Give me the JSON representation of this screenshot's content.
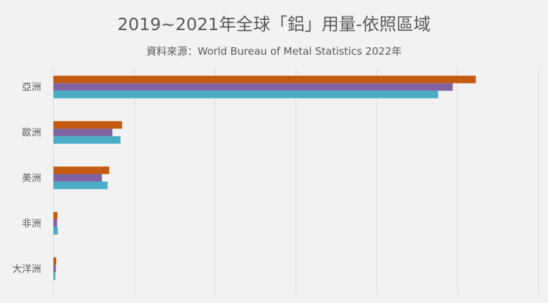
{
  "chart_data": {
    "type": "bar",
    "orientation": "horizontal",
    "title": "2019~2021年全球「鋁」用量-依照區域",
    "subtitle": "資料來源：World Bureau of Metal Statistics 2022年",
    "categories": [
      "亞洲",
      "歐洲",
      "美洲",
      "非洲",
      "大洋洲"
    ],
    "series": [
      {
        "color": "#c55a11",
        "values": [
          104.5,
          17.0,
          13.8,
          1.0,
          0.7
        ]
      },
      {
        "color": "#8064a2",
        "values": [
          98.8,
          14.6,
          12.0,
          0.9,
          0.6
        ]
      },
      {
        "color": "#4bacc6",
        "values": [
          95.2,
          16.6,
          13.4,
          1.1,
          0.5
        ]
      }
    ],
    "xlim": [
      0,
      120
    ],
    "grid": true,
    "legend": "none"
  }
}
